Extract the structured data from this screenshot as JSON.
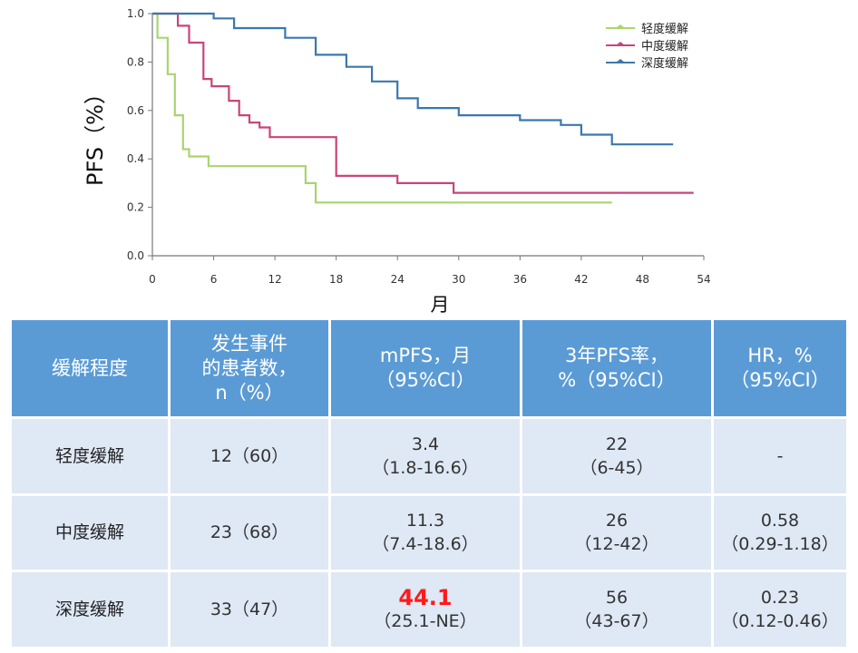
{
  "chart_data": {
    "type": "line",
    "title": "",
    "xlabel": "月",
    "ylabel": "PFS（%）",
    "xlim": [
      0,
      54
    ],
    "ylim": [
      0.0,
      1.0
    ],
    "xticks": [
      "0",
      "6",
      "12",
      "18",
      "24",
      "30",
      "36",
      "42",
      "48",
      "54"
    ],
    "yticks": [
      "0.0",
      "0.2",
      "0.4",
      "0.6",
      "0.8",
      "1.0"
    ],
    "legend_position": "top-right",
    "series": [
      {
        "name": "轻度缓解",
        "color": "#a9d46f",
        "x": [
          0,
          0.5,
          0.5,
          1.5,
          1.5,
          2.2,
          2.2,
          3.0,
          3.0,
          3.6,
          3.6,
          5.5,
          5.5,
          15.0,
          15.0,
          16.0,
          16.0,
          45.0
        ],
        "y": [
          1.0,
          1.0,
          0.9,
          0.9,
          0.75,
          0.75,
          0.58,
          0.58,
          0.44,
          0.44,
          0.41,
          0.41,
          0.37,
          0.37,
          0.3,
          0.3,
          0.22,
          0.22
        ]
      },
      {
        "name": "中度缓解",
        "color": "#c8457a",
        "x": [
          0,
          2.5,
          2.5,
          3.6,
          3.6,
          5.0,
          5.0,
          5.8,
          5.8,
          7.5,
          7.5,
          8.5,
          8.5,
          9.5,
          9.5,
          10.5,
          10.5,
          11.5,
          11.5,
          18.0,
          18.0,
          24.0,
          24.0,
          29.5,
          29.5,
          53.0
        ],
        "y": [
          1.0,
          1.0,
          0.95,
          0.95,
          0.88,
          0.88,
          0.73,
          0.73,
          0.7,
          0.7,
          0.64,
          0.64,
          0.58,
          0.58,
          0.55,
          0.55,
          0.53,
          0.53,
          0.49,
          0.49,
          0.33,
          0.33,
          0.3,
          0.3,
          0.26,
          0.26
        ]
      },
      {
        "name": "深度缓解",
        "color": "#3a78ad",
        "x": [
          0,
          6.0,
          6.0,
          8.0,
          8.0,
          13.0,
          13.0,
          16.0,
          16.0,
          19.0,
          19.0,
          21.5,
          21.5,
          24.0,
          24.0,
          26.0,
          26.0,
          30.0,
          30.0,
          36.0,
          36.0,
          40.0,
          40.0,
          42.0,
          42.0,
          45.0,
          45.0,
          51.0
        ],
        "y": [
          1.0,
          1.0,
          0.98,
          0.98,
          0.94,
          0.94,
          0.9,
          0.9,
          0.83,
          0.83,
          0.78,
          0.78,
          0.72,
          0.72,
          0.65,
          0.65,
          0.61,
          0.61,
          0.58,
          0.58,
          0.56,
          0.56,
          0.54,
          0.54,
          0.5,
          0.5,
          0.46,
          0.46
        ]
      }
    ]
  },
  "table": {
    "headers": [
      [
        "缓解程度"
      ],
      [
        "发生事件",
        "的患者数，",
        "n（%）"
      ],
      [
        "mPFS，月",
        "（95%CI）"
      ],
      [
        "3年PFS率，",
        "%（95%CI）"
      ],
      [
        "HR，%",
        "（95%CI）"
      ]
    ],
    "rows": [
      {
        "label": "轻度缓解",
        "events": "12（60）",
        "mpfs": "3.4",
        "mpfs_ci": "（1.8-16.6）",
        "pfs3": "22",
        "pfs3_ci": "（6-45）",
        "hr": "-",
        "hr_ci": ""
      },
      {
        "label": "中度缓解",
        "events": "23（68）",
        "mpfs": "11.3",
        "mpfs_ci": "（7.4-18.6）",
        "pfs3": "26",
        "pfs3_ci": "（12-42）",
        "hr": "0.58",
        "hr_ci": "（0.29-1.18）"
      },
      {
        "label": "深度缓解",
        "events": "33（47）",
        "mpfs": "44.1",
        "mpfs_ci": "（25.1-NE）",
        "pfs3": "56",
        "pfs3_ci": "（43-67）",
        "hr": "0.23",
        "hr_ci": "（0.12-0.46）"
      }
    ]
  }
}
